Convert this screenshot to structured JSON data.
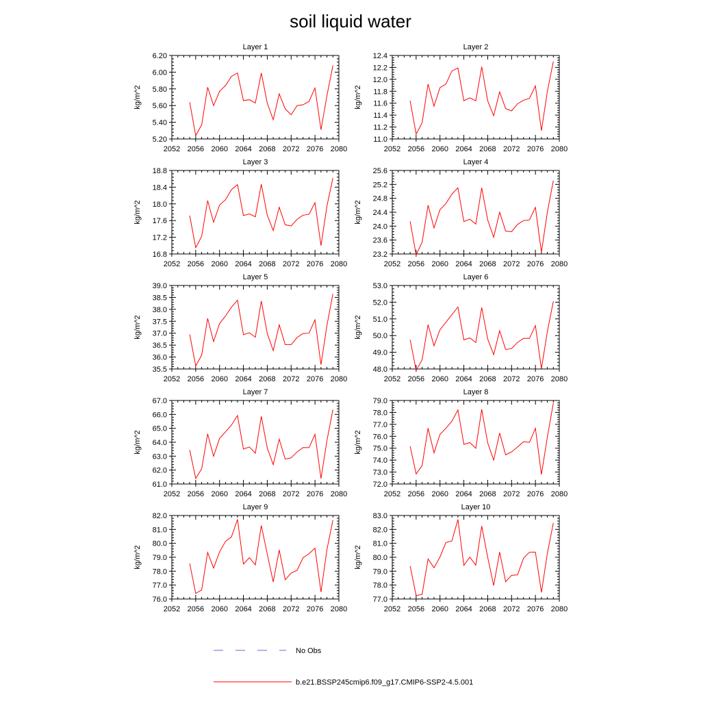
{
  "title": "soil liquid water",
  "chart_data": [
    {
      "type": "line",
      "title": "Layer 1",
      "ylabel": "kg/m^2",
      "xlim": [
        2052,
        2080
      ],
      "ylim": [
        5.2,
        6.2
      ],
      "xticks": [
        "2052",
        "2056",
        "2060",
        "2064",
        "2068",
        "2072",
        "2076",
        "2080"
      ],
      "yticks": [
        "5.20",
        "5.40",
        "5.60",
        "5.80",
        "6.00",
        "6.20"
      ],
      "series": [
        {
          "color": "#ff0000",
          "x": [
            2055,
            2056,
            2057,
            2058,
            2059,
            2060,
            2061,
            2062,
            2063,
            2064,
            2065,
            2066,
            2067,
            2068,
            2069,
            2070,
            2071,
            2072,
            2073,
            2074,
            2075,
            2076,
            2077,
            2078,
            2079
          ],
          "values": [
            5.64,
            5.24,
            5.37,
            5.82,
            5.6,
            5.77,
            5.84,
            5.95,
            5.99,
            5.66,
            5.67,
            5.63,
            5.99,
            5.63,
            5.43,
            5.74,
            5.56,
            5.49,
            5.6,
            5.61,
            5.65,
            5.81,
            5.31,
            5.72,
            6.08
          ]
        }
      ]
    },
    {
      "type": "line",
      "title": "Layer 2",
      "ylabel": "kg/m^2",
      "xlim": [
        2052,
        2080
      ],
      "ylim": [
        11.0,
        12.4
      ],
      "xticks": [
        "2052",
        "2056",
        "2060",
        "2064",
        "2068",
        "2072",
        "2076",
        "2080"
      ],
      "yticks": [
        "11.0",
        "11.2",
        "11.4",
        "11.6",
        "11.8",
        "12.0",
        "12.2",
        "12.4"
      ],
      "series": [
        {
          "color": "#ff0000",
          "x": [
            2055,
            2056,
            2057,
            2058,
            2059,
            2060,
            2061,
            2062,
            2063,
            2064,
            2065,
            2066,
            2067,
            2068,
            2069,
            2070,
            2071,
            2072,
            2073,
            2074,
            2075,
            2076,
            2077,
            2078,
            2079
          ],
          "values": [
            11.64,
            11.08,
            11.27,
            11.92,
            11.55,
            11.86,
            11.92,
            12.14,
            12.19,
            11.64,
            11.69,
            11.64,
            12.21,
            11.64,
            11.39,
            11.79,
            11.51,
            11.47,
            11.59,
            11.65,
            11.68,
            11.89,
            11.14,
            11.8,
            12.3
          ]
        }
      ]
    },
    {
      "type": "line",
      "title": "Layer 3",
      "ylabel": "kg/m^2",
      "xlim": [
        2052,
        2080
      ],
      "ylim": [
        16.8,
        18.8
      ],
      "xticks": [
        "2052",
        "2056",
        "2060",
        "2064",
        "2068",
        "2072",
        "2076",
        "2080"
      ],
      "yticks": [
        "16.8",
        "17.2",
        "17.6",
        "18.0",
        "18.4",
        "18.8"
      ],
      "series": [
        {
          "color": "#ff0000",
          "x": [
            2055,
            2056,
            2057,
            2058,
            2059,
            2060,
            2061,
            2062,
            2063,
            2064,
            2065,
            2066,
            2067,
            2068,
            2069,
            2070,
            2071,
            2072,
            2073,
            2074,
            2075,
            2076,
            2077,
            2078,
            2079
          ],
          "values": [
            17.72,
            16.95,
            17.22,
            18.08,
            17.56,
            17.97,
            18.1,
            18.34,
            18.46,
            17.72,
            17.76,
            17.69,
            18.47,
            17.73,
            17.36,
            17.92,
            17.5,
            17.47,
            17.63,
            17.73,
            17.75,
            18.03,
            17.0,
            17.95,
            18.62
          ]
        }
      ]
    },
    {
      "type": "line",
      "title": "Layer 4",
      "ylabel": "kg/m^2",
      "xlim": [
        2052,
        2080
      ],
      "ylim": [
        23.2,
        25.6
      ],
      "xticks": [
        "2052",
        "2056",
        "2060",
        "2064",
        "2068",
        "2072",
        "2076",
        "2080"
      ],
      "yticks": [
        "23.2",
        "23.6",
        "24.0",
        "24.4",
        "24.8",
        "25.2",
        "25.6"
      ],
      "series": [
        {
          "color": "#ff0000",
          "x": [
            2055,
            2056,
            2057,
            2058,
            2059,
            2060,
            2061,
            2062,
            2063,
            2064,
            2065,
            2066,
            2067,
            2068,
            2069,
            2070,
            2071,
            2072,
            2073,
            2074,
            2075,
            2076,
            2077,
            2078,
            2079
          ],
          "values": [
            24.14,
            23.17,
            23.54,
            24.6,
            23.95,
            24.47,
            24.65,
            24.92,
            25.1,
            24.13,
            24.2,
            24.06,
            25.1,
            24.18,
            23.68,
            24.4,
            23.86,
            23.84,
            24.05,
            24.16,
            24.18,
            24.54,
            23.25,
            24.41,
            25.31
          ]
        }
      ]
    },
    {
      "type": "line",
      "title": "Layer 5",
      "ylabel": "kg/m^2",
      "xlim": [
        2052,
        2080
      ],
      "ylim": [
        35.5,
        39.0
      ],
      "xticks": [
        "2052",
        "2056",
        "2060",
        "2064",
        "2068",
        "2072",
        "2076",
        "2080"
      ],
      "yticks": [
        "35.5",
        "36.0",
        "36.5",
        "37.0",
        "37.5",
        "38.0",
        "38.5",
        "39.0"
      ],
      "series": [
        {
          "color": "#ff0000",
          "x": [
            2055,
            2056,
            2057,
            2058,
            2059,
            2060,
            2061,
            2062,
            2063,
            2064,
            2065,
            2066,
            2067,
            2068,
            2069,
            2070,
            2071,
            2072,
            2073,
            2074,
            2075,
            2076,
            2077,
            2078,
            2079
          ],
          "values": [
            36.95,
            35.63,
            36.08,
            37.62,
            36.65,
            37.4,
            37.72,
            38.09,
            38.38,
            36.94,
            37.02,
            36.83,
            38.35,
            36.99,
            36.27,
            37.35,
            36.52,
            36.52,
            36.82,
            36.99,
            37.0,
            37.56,
            35.68,
            37.33,
            38.65
          ]
        }
      ]
    },
    {
      "type": "line",
      "title": "Layer 6",
      "ylabel": "kg/m^2",
      "xlim": [
        2052,
        2080
      ],
      "ylim": [
        48.0,
        53.0
      ],
      "xticks": [
        "2052",
        "2056",
        "2060",
        "2064",
        "2068",
        "2072",
        "2076",
        "2080"
      ],
      "yticks": [
        "48.0",
        "49.0",
        "50.0",
        "51.0",
        "52.0",
        "53.0"
      ],
      "series": [
        {
          "color": "#ff0000",
          "x": [
            2055,
            2056,
            2057,
            2058,
            2059,
            2060,
            2061,
            2062,
            2063,
            2064,
            2065,
            2066,
            2067,
            2068,
            2069,
            2070,
            2071,
            2072,
            2073,
            2074,
            2075,
            2076,
            2077,
            2078,
            2079
          ],
          "values": [
            49.75,
            47.92,
            48.55,
            50.65,
            49.39,
            50.35,
            50.8,
            51.25,
            51.71,
            49.74,
            49.86,
            49.58,
            51.68,
            49.8,
            48.86,
            50.29,
            49.17,
            49.22,
            49.59,
            49.83,
            49.83,
            50.6,
            48.02,
            50.25,
            52.05
          ]
        }
      ]
    },
    {
      "type": "line",
      "title": "Layer 7",
      "ylabel": "kg/m^2",
      "xlim": [
        2052,
        2080
      ],
      "ylim": [
        61.0,
        67.0
      ],
      "xticks": [
        "2052",
        "2056",
        "2060",
        "2064",
        "2068",
        "2072",
        "2076",
        "2080"
      ],
      "yticks": [
        "61.0",
        "62.0",
        "63.0",
        "64.0",
        "65.0",
        "66.0",
        "67.0"
      ],
      "series": [
        {
          "color": "#ff0000",
          "x": [
            2055,
            2056,
            2057,
            2058,
            2059,
            2060,
            2061,
            2062,
            2063,
            2064,
            2065,
            2066,
            2067,
            2068,
            2069,
            2070,
            2071,
            2072,
            2073,
            2074,
            2075,
            2076,
            2077,
            2078,
            2079
          ],
          "values": [
            63.44,
            61.4,
            62.09,
            64.6,
            62.99,
            64.27,
            64.75,
            65.23,
            65.92,
            63.51,
            63.66,
            63.21,
            65.86,
            63.59,
            62.39,
            64.22,
            62.79,
            62.88,
            63.3,
            63.62,
            63.61,
            64.57,
            61.39,
            64.13,
            66.34
          ]
        }
      ]
    },
    {
      "type": "line",
      "title": "Layer 8",
      "ylabel": "kg/m^2",
      "xlim": [
        2052,
        2080
      ],
      "ylim": [
        72.0,
        79.0
      ],
      "xticks": [
        "2052",
        "2056",
        "2060",
        "2064",
        "2068",
        "2072",
        "2076",
        "2080"
      ],
      "yticks": [
        "72.0",
        "73.0",
        "74.0",
        "75.0",
        "76.0",
        "77.0",
        "78.0",
        "79.0"
      ],
      "series": [
        {
          "color": "#ff0000",
          "x": [
            2055,
            2056,
            2057,
            2058,
            2059,
            2060,
            2061,
            2062,
            2063,
            2064,
            2065,
            2066,
            2067,
            2068,
            2069,
            2070,
            2071,
            2072,
            2073,
            2074,
            2075,
            2076,
            2077,
            2078,
            2079
          ],
          "values": [
            75.17,
            72.84,
            73.55,
            76.68,
            74.61,
            76.16,
            76.67,
            77.26,
            78.21,
            75.32,
            75.47,
            74.99,
            78.26,
            75.45,
            74.0,
            76.27,
            74.44,
            74.69,
            75.1,
            75.54,
            75.49,
            76.67,
            72.8,
            75.95,
            78.78
          ]
        }
      ]
    },
    {
      "type": "line",
      "title": "Layer 9",
      "ylabel": "kg/m^2",
      "xlim": [
        2052,
        2080
      ],
      "ylim": [
        76.0,
        82.0
      ],
      "xticks": [
        "2052",
        "2056",
        "2060",
        "2064",
        "2068",
        "2072",
        "2076",
        "2080"
      ],
      "yticks": [
        "76.0",
        "77.0",
        "78.0",
        "79.0",
        "80.0",
        "81.0",
        "82.0"
      ],
      "series": [
        {
          "color": "#ff0000",
          "x": [
            2055,
            2056,
            2057,
            2058,
            2059,
            2060,
            2061,
            2062,
            2063,
            2064,
            2065,
            2066,
            2067,
            2068,
            2069,
            2070,
            2071,
            2072,
            2073,
            2074,
            2075,
            2076,
            2077,
            2078,
            2079
          ],
          "values": [
            78.55,
            76.4,
            76.65,
            79.35,
            78.22,
            79.38,
            80.14,
            80.46,
            81.72,
            78.51,
            78.97,
            78.45,
            81.28,
            79.23,
            77.23,
            79.52,
            77.38,
            77.87,
            78.06,
            78.97,
            79.25,
            79.65,
            76.5,
            79.56,
            81.67
          ]
        }
      ]
    },
    {
      "type": "line",
      "title": "Layer 10",
      "ylabel": "kg/m^2",
      "xlim": [
        2052,
        2080
      ],
      "ylim": [
        77.0,
        83.0
      ],
      "xticks": [
        "2052",
        "2056",
        "2060",
        "2064",
        "2068",
        "2072",
        "2076",
        "2080"
      ],
      "yticks": [
        "77.0",
        "78.0",
        "79.0",
        "80.0",
        "81.0",
        "82.0",
        "83.0"
      ],
      "series": [
        {
          "color": "#ff0000",
          "x": [
            2055,
            2056,
            2057,
            2058,
            2059,
            2060,
            2061,
            2062,
            2063,
            2064,
            2065,
            2066,
            2067,
            2068,
            2069,
            2070,
            2071,
            2072,
            2073,
            2074,
            2075,
            2076,
            2077,
            2078,
            2079
          ],
          "values": [
            79.37,
            77.24,
            77.34,
            79.87,
            79.25,
            80.02,
            81.06,
            81.17,
            82.71,
            79.42,
            80.01,
            79.43,
            82.24,
            80.0,
            77.97,
            80.37,
            78.24,
            78.7,
            78.73,
            79.93,
            80.36,
            80.37,
            77.47,
            80.29,
            82.47
          ]
        }
      ]
    }
  ],
  "legend": [
    {
      "label": "No Obs",
      "color": "#6a6ad4",
      "style": "dashed"
    },
    {
      "label": "b.e21.BSSP245cmip6.f09_g17.CMIP6-SSP2-4.5.001",
      "color": "#ff0000",
      "style": "solid"
    }
  ]
}
